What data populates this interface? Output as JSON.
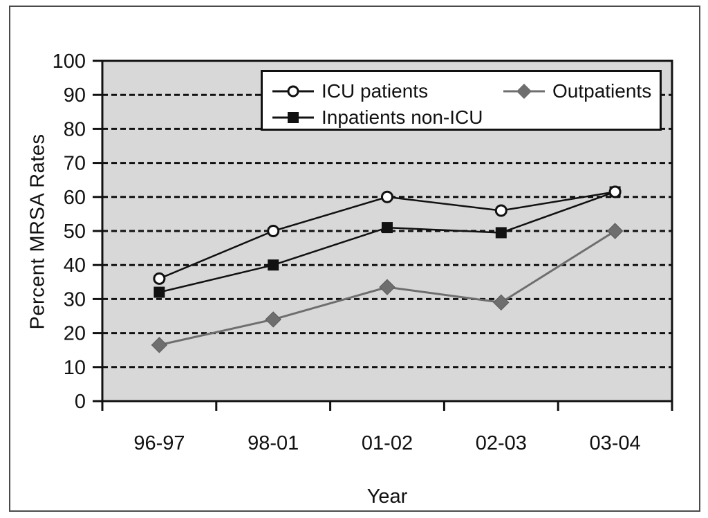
{
  "figure": {
    "background": "#ffffff",
    "border_color": "#4a4a4a"
  },
  "chart_data": {
    "type": "line",
    "title": "",
    "xlabel": "Year",
    "ylabel": "Percent MRSA Rates",
    "categories": [
      "96-97",
      "98-01",
      "01-02",
      "02-03",
      "03-04"
    ],
    "series": [
      {
        "name": "ICU patients",
        "marker": "open-circle",
        "color": "#111111",
        "line_width": 2.5,
        "values": [
          36,
          50,
          60,
          56,
          61.5
        ]
      },
      {
        "name": "Inpatients non-ICU",
        "marker": "filled-square",
        "color": "#111111",
        "line_width": 2.5,
        "values": [
          32,
          40,
          51,
          49.5,
          61.5
        ]
      },
      {
        "name": "Outpatients",
        "marker": "filled-diamond",
        "color": "#6e6e6e",
        "line_width": 3,
        "values": [
          16.5,
          24,
          33.5,
          29,
          50
        ]
      }
    ],
    "ylim": [
      0,
      100
    ],
    "y_tick_step": 10,
    "y_tick_labels": [
      "0",
      "10",
      "20",
      "30",
      "40",
      "50",
      "60",
      "70",
      "80",
      "90",
      "100"
    ],
    "grid": "horizontal-dashed",
    "grid_color": "#111111",
    "axis_color": "#111111",
    "plot_background": "#d8d8d8",
    "legend_position": "top-inside"
  }
}
